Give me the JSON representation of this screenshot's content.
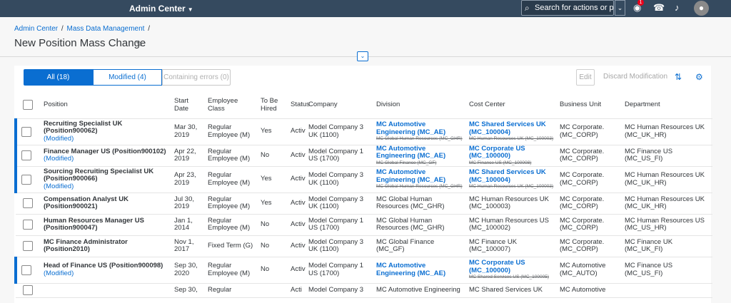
{
  "shell": {
    "app_title": "Admin Center",
    "search_placeholder": "Search for actions or peo...",
    "notification_count": "1"
  },
  "header": {
    "breadcrumb": [
      "Admin Center",
      "Mass Data Management"
    ],
    "breadcrumb_sep": "/",
    "title": "New Position Mass Change"
  },
  "toolbar": {
    "filters": [
      {
        "label": "All (18)",
        "selected": true
      },
      {
        "label": "Modified (4)",
        "selected": false
      },
      {
        "label": "Containing errors (0)",
        "selected": false,
        "disabled": true
      }
    ],
    "edit_label": "Edit",
    "discard_label": "Discard Modification"
  },
  "table": {
    "columns": [
      "Position",
      "Start Date",
      "Employee Class",
      "To Be Hired",
      "Status",
      "Company",
      "Division",
      "Cost Center",
      "Business Unit",
      "Department"
    ],
    "modified_label": "(Modified)",
    "rows": [
      {
        "position": "Recruiting Specialist UK (Position900062)",
        "modified": true,
        "start_date": "Mar 30, 2019",
        "employee_class": "Regular Employee (M)",
        "to_be_hired": "Yes",
        "status": "Active",
        "company": "Model Company 3 UK (1100)",
        "division": {
          "value": "MC Automotive Engineering (MC_AE)",
          "old": "MC Global Human Resources (MC_GHR)"
        },
        "cost_center": {
          "value": "MC Shared Services UK (MC_100004)",
          "old": "MC Human Resources UK (MC_100003)"
        },
        "business_unit": "MC Corporate. (MC_CORP)",
        "department": "MC Human Resources UK (MC_UK_HR)"
      },
      {
        "position": "Finance Manager US (Position900102)",
        "modified": true,
        "start_date": "Apr 22, 2019",
        "employee_class": "Regular Employee (M)",
        "to_be_hired": "No",
        "status": "Active",
        "company": "Model Company 1 US (1700)",
        "division": {
          "value": "MC Automotive Engineering (MC_AE)",
          "old": "MC Global Finance (MC_GF)"
        },
        "cost_center": {
          "value": "MC Corporate US (MC_100000)",
          "old": "MC Finance US (MC_100008)"
        },
        "business_unit": "MC Corporate. (MC_CORP)",
        "department": "MC Finance US (MC_US_FI)"
      },
      {
        "position": "Sourcing Recruiting Specialist UK (Position900066)",
        "modified": true,
        "start_date": "Apr 23, 2019",
        "employee_class": "Regular Employee (M)",
        "to_be_hired": "Yes",
        "status": "Active",
        "company": "Model Company 3 UK (1100)",
        "division": {
          "value": "MC Automotive Engineering (MC_AE)",
          "old": "MC Global Human Resources (MC_GHR)"
        },
        "cost_center": {
          "value": "MC Shared Services UK (MC_100004)",
          "old": "MC Human Resources UK (MC_100003)"
        },
        "business_unit": "MC Corporate. (MC_CORP)",
        "department": "MC Human Resources UK (MC_UK_HR)"
      },
      {
        "position": "Compensation Analyst UK (Position900021)",
        "modified": false,
        "start_date": "Jul 30, 2019",
        "employee_class": "Regular Employee (M)",
        "to_be_hired": "Yes",
        "status": "Active",
        "company": "Model Company 3 UK (1100)",
        "division": {
          "value": "MC Global Human Resources (MC_GHR)",
          "old": ""
        },
        "cost_center": {
          "value": "MC Human Resources UK (MC_100003)",
          "old": ""
        },
        "business_unit": "MC Corporate. (MC_CORP)",
        "department": "MC Human Resources UK (MC_UK_HR)"
      },
      {
        "position": "Human Resources Manager US (Position900047)",
        "modified": false,
        "start_date": "Jan 1, 2014",
        "employee_class": "Regular Employee (M)",
        "to_be_hired": "No",
        "status": "Active",
        "company": "Model Company 1 US (1700)",
        "division": {
          "value": "MC Global Human Resources (MC_GHR)",
          "old": ""
        },
        "cost_center": {
          "value": "MC Human Resources US (MC_100002)",
          "old": ""
        },
        "business_unit": "MC Corporate. (MC_CORP)",
        "department": "MC Human Resources US (MC_US_HR)"
      },
      {
        "position": "MC Finance Administrator (Position2010)",
        "modified": false,
        "start_date": "Nov 1, 2017",
        "employee_class": "Fixed Term (G)",
        "to_be_hired": "No",
        "status": "Active",
        "company": "Model Company 3 UK (1100)",
        "division": {
          "value": "MC Global Finance (MC_GF)",
          "old": ""
        },
        "cost_center": {
          "value": "MC Finance UK (MC_100007)",
          "old": ""
        },
        "business_unit": "MC Corporate. (MC_CORP)",
        "department": "MC Finance UK (MC_UK_FI)"
      },
      {
        "position": "Head of Finance US (Position900098)",
        "modified": true,
        "start_date": "Sep 30, 2020",
        "employee_class": "Regular Employee (M)",
        "to_be_hired": "No",
        "status": "Active",
        "company": "Model Company 1 US (1700)",
        "division": {
          "value": "MC Automotive Engineering (MC_AE)",
          "old": ""
        },
        "cost_center": {
          "value": "MC Corporate US (MC_100000)",
          "old": "MC Shared Services US (MC_100005)"
        },
        "business_unit": "MC Automotive (MC_AUTO)",
        "department": "MC Finance US (MC_US_FI)"
      },
      {
        "position": "",
        "modified": false,
        "start_date": "Sep 30,",
        "employee_class": "Regular",
        "to_be_hired": "",
        "status": "Acti",
        "company": "Model Company 3",
        "division": {
          "value": "MC Automotive Engineering",
          "old": ""
        },
        "cost_center": {
          "value": "MC Shared Services UK",
          "old": ""
        },
        "business_unit": "MC Automotive",
        "department": ""
      }
    ]
  }
}
